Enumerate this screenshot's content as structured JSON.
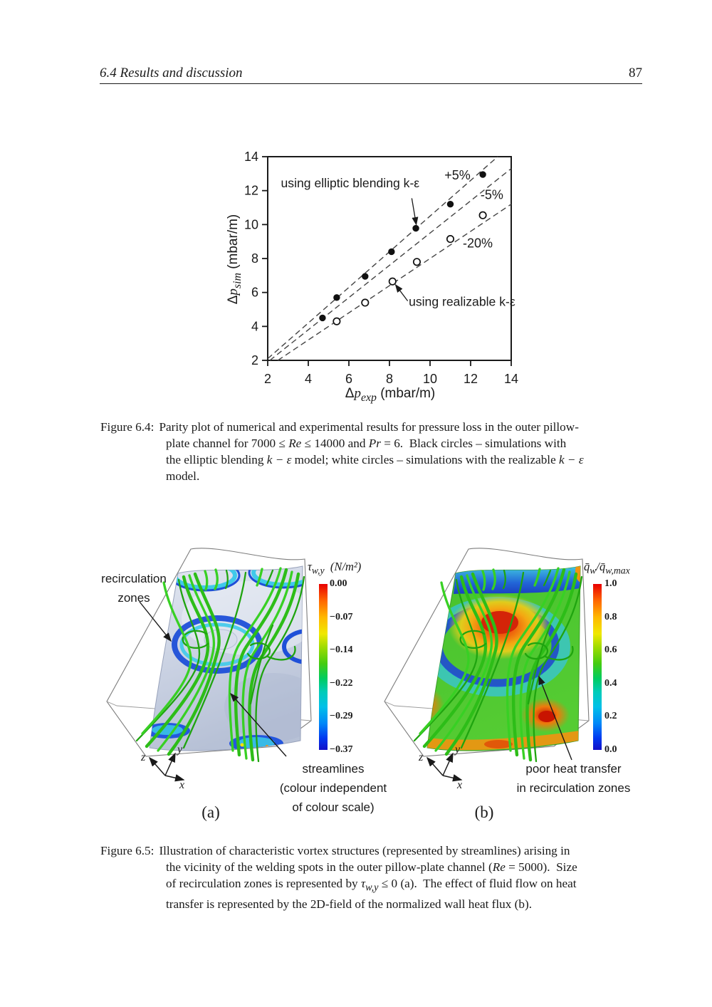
{
  "header": {
    "section": "6.4  Results and discussion",
    "page_number": "87"
  },
  "chart_data": {
    "type": "scatter",
    "title": "Parity plot of pressure loss",
    "xlabel": "Δp_exp (mbar/m)",
    "ylabel": "Δp_sim (mbar/m)",
    "xlabel_html": "Δ<i>p<sub>exp</sub></i> (mbar/m)",
    "ylabel_html": "Δ<i>p<sub>sim</sub></i> (mbar/m)",
    "xlim": [
      2,
      14
    ],
    "ylim": [
      2,
      14
    ],
    "xticks": [
      2,
      4,
      6,
      8,
      10,
      12,
      14
    ],
    "yticks": [
      2,
      4,
      6,
      8,
      10,
      12,
      14
    ],
    "grid": false,
    "series": [
      {
        "name": "using elliptic blending k-ε",
        "marker": "filled-circle",
        "points": [
          [
            4.7,
            4.5
          ],
          [
            5.4,
            5.7
          ],
          [
            6.8,
            6.95
          ],
          [
            8.1,
            8.4
          ],
          [
            9.3,
            9.78
          ],
          [
            11.0,
            11.2
          ],
          [
            12.6,
            12.95
          ]
        ]
      },
      {
        "name": "using realizable k-ε",
        "marker": "open-circle",
        "points": [
          [
            5.4,
            4.3
          ],
          [
            6.8,
            5.4
          ],
          [
            8.15,
            6.65
          ],
          [
            9.35,
            7.8
          ],
          [
            11.0,
            9.15
          ],
          [
            12.6,
            10.55
          ]
        ]
      }
    ],
    "reference_lines": [
      {
        "slope": 1.05,
        "label": "+5%",
        "label_x": 11.35,
        "label_y": 12.9
      },
      {
        "slope": 0.95,
        "label": "-5%",
        "label_x": 13.05,
        "label_y": 11.75
      },
      {
        "slope": 0.8,
        "label": "-20%",
        "label_x": 12.35,
        "label_y": 8.9
      }
    ],
    "annotations": [
      {
        "text": "using elliptic blending k-ε",
        "x": 2.65,
        "y": 12.2,
        "anchor": "start",
        "arrow_from": [
          9.1,
          11.55
        ],
        "arrow_to": [
          9.32,
          10.0
        ]
      },
      {
        "text": "using realizable k-ε",
        "x": 8.95,
        "y": 5.22,
        "anchor": "start",
        "arrow_from": [
          8.9,
          5.5
        ],
        "arrow_to": [
          8.3,
          6.45
        ]
      }
    ]
  },
  "figure_6_4": {
    "caption_label": "Figure 6.4:",
    "caption_lines": [
      "Parity plot of numerical and experimental results for pressure loss in the outer pillow-",
      "plate channel for 7000 ≤ <i>Re</i> ≤ 14000 and <i>Pr</i> = 6.&#160; Black circles – simulations with",
      "the elliptic blending <i>k − ε</i> model; white circles – simulations with the realizable <i>k − ε</i>",
      "model."
    ]
  },
  "figure_6_5": {
    "panel_a": {
      "panel_label": "(a)",
      "labels": {
        "recirculation": "recirculation\nzones",
        "streamlines": "streamlines\n(colour independent\nof colour scale)"
      },
      "colorbar": {
        "title": "τ_w,y (N/m²)",
        "title_html": "τ<sub>w,y</sub>&#160;&#160;(N/m²)",
        "ticks": [
          "0.00",
          "−0.07",
          "−0.14",
          "−0.22",
          "−0.29",
          "−0.37"
        ]
      },
      "axes": {
        "x": "x",
        "y": "y",
        "z": "z"
      }
    },
    "panel_b": {
      "panel_label": "(b)",
      "labels": {
        "poor_heat": "poor heat transfer\nin recirculation zones"
      },
      "colorbar": {
        "title": "q̄w/q̄w,max",
        "title_html": "q̄<sub>w</sub>/q̄<sub>w,max</sub>",
        "ticks": [
          "1.0",
          "0.8",
          "0.6",
          "0.4",
          "0.2",
          "0.0"
        ]
      },
      "axes": {
        "x": "x",
        "y": "y",
        "z": "z"
      }
    },
    "caption_label": "Figure 6.5:",
    "caption_lines": [
      "Illustration of characteristic vortex structures (represented by streamlines) arising in",
      "the vicinity of the welding spots in the outer pillow-plate channel (<i>Re</i> = 5000).&#160; Size",
      "of recirculation zones is represented by <i>τ<sub>w,y</sub></i> ≤ 0 (a).&#160; The effect of fluid flow on heat",
      "transfer is represented by the 2D-field of the normalized wall heat flux (b)."
    ]
  },
  "colors": {
    "streamline_green": "#2dbd18",
    "recirculation_blue": "#1e4fd8",
    "recirculation_cyan": "#3fc9ea",
    "surface_gray": "#c5cde0",
    "heat_red": "#d42408",
    "heat_orange": "#f09410"
  }
}
